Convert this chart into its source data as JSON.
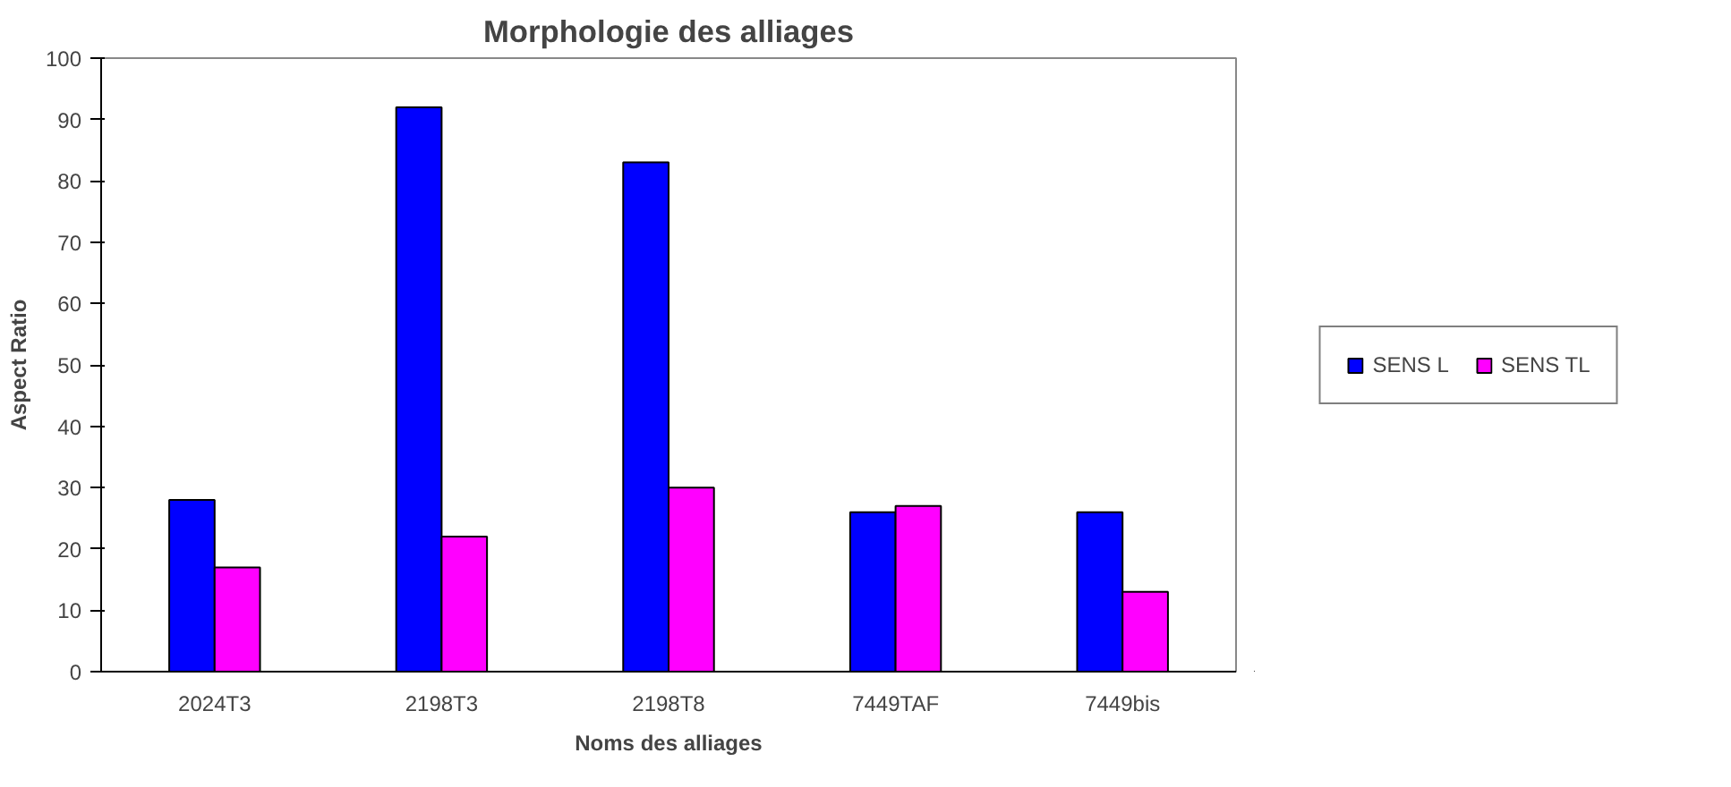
{
  "chart_data": {
    "type": "bar",
    "title": "Morphologie des alliages",
    "xlabel": "Noms des alliages",
    "ylabel": "Aspect Ratio",
    "categories": [
      "2024T3",
      "2198T3",
      "2198T8",
      "7449TAF",
      "7449bis"
    ],
    "series": [
      {
        "name": "SENS L",
        "color": "#0000ff",
        "values": [
          28,
          92,
          83,
          26,
          26
        ]
      },
      {
        "name": "SENS TL",
        "color": "#ff00ff",
        "values": [
          17,
          22,
          30,
          27,
          13
        ]
      }
    ],
    "ylim": [
      0,
      100
    ],
    "yticks": [
      0,
      10,
      20,
      30,
      40,
      50,
      60,
      70,
      80,
      90,
      100
    ],
    "grid": false,
    "legend": "right"
  }
}
